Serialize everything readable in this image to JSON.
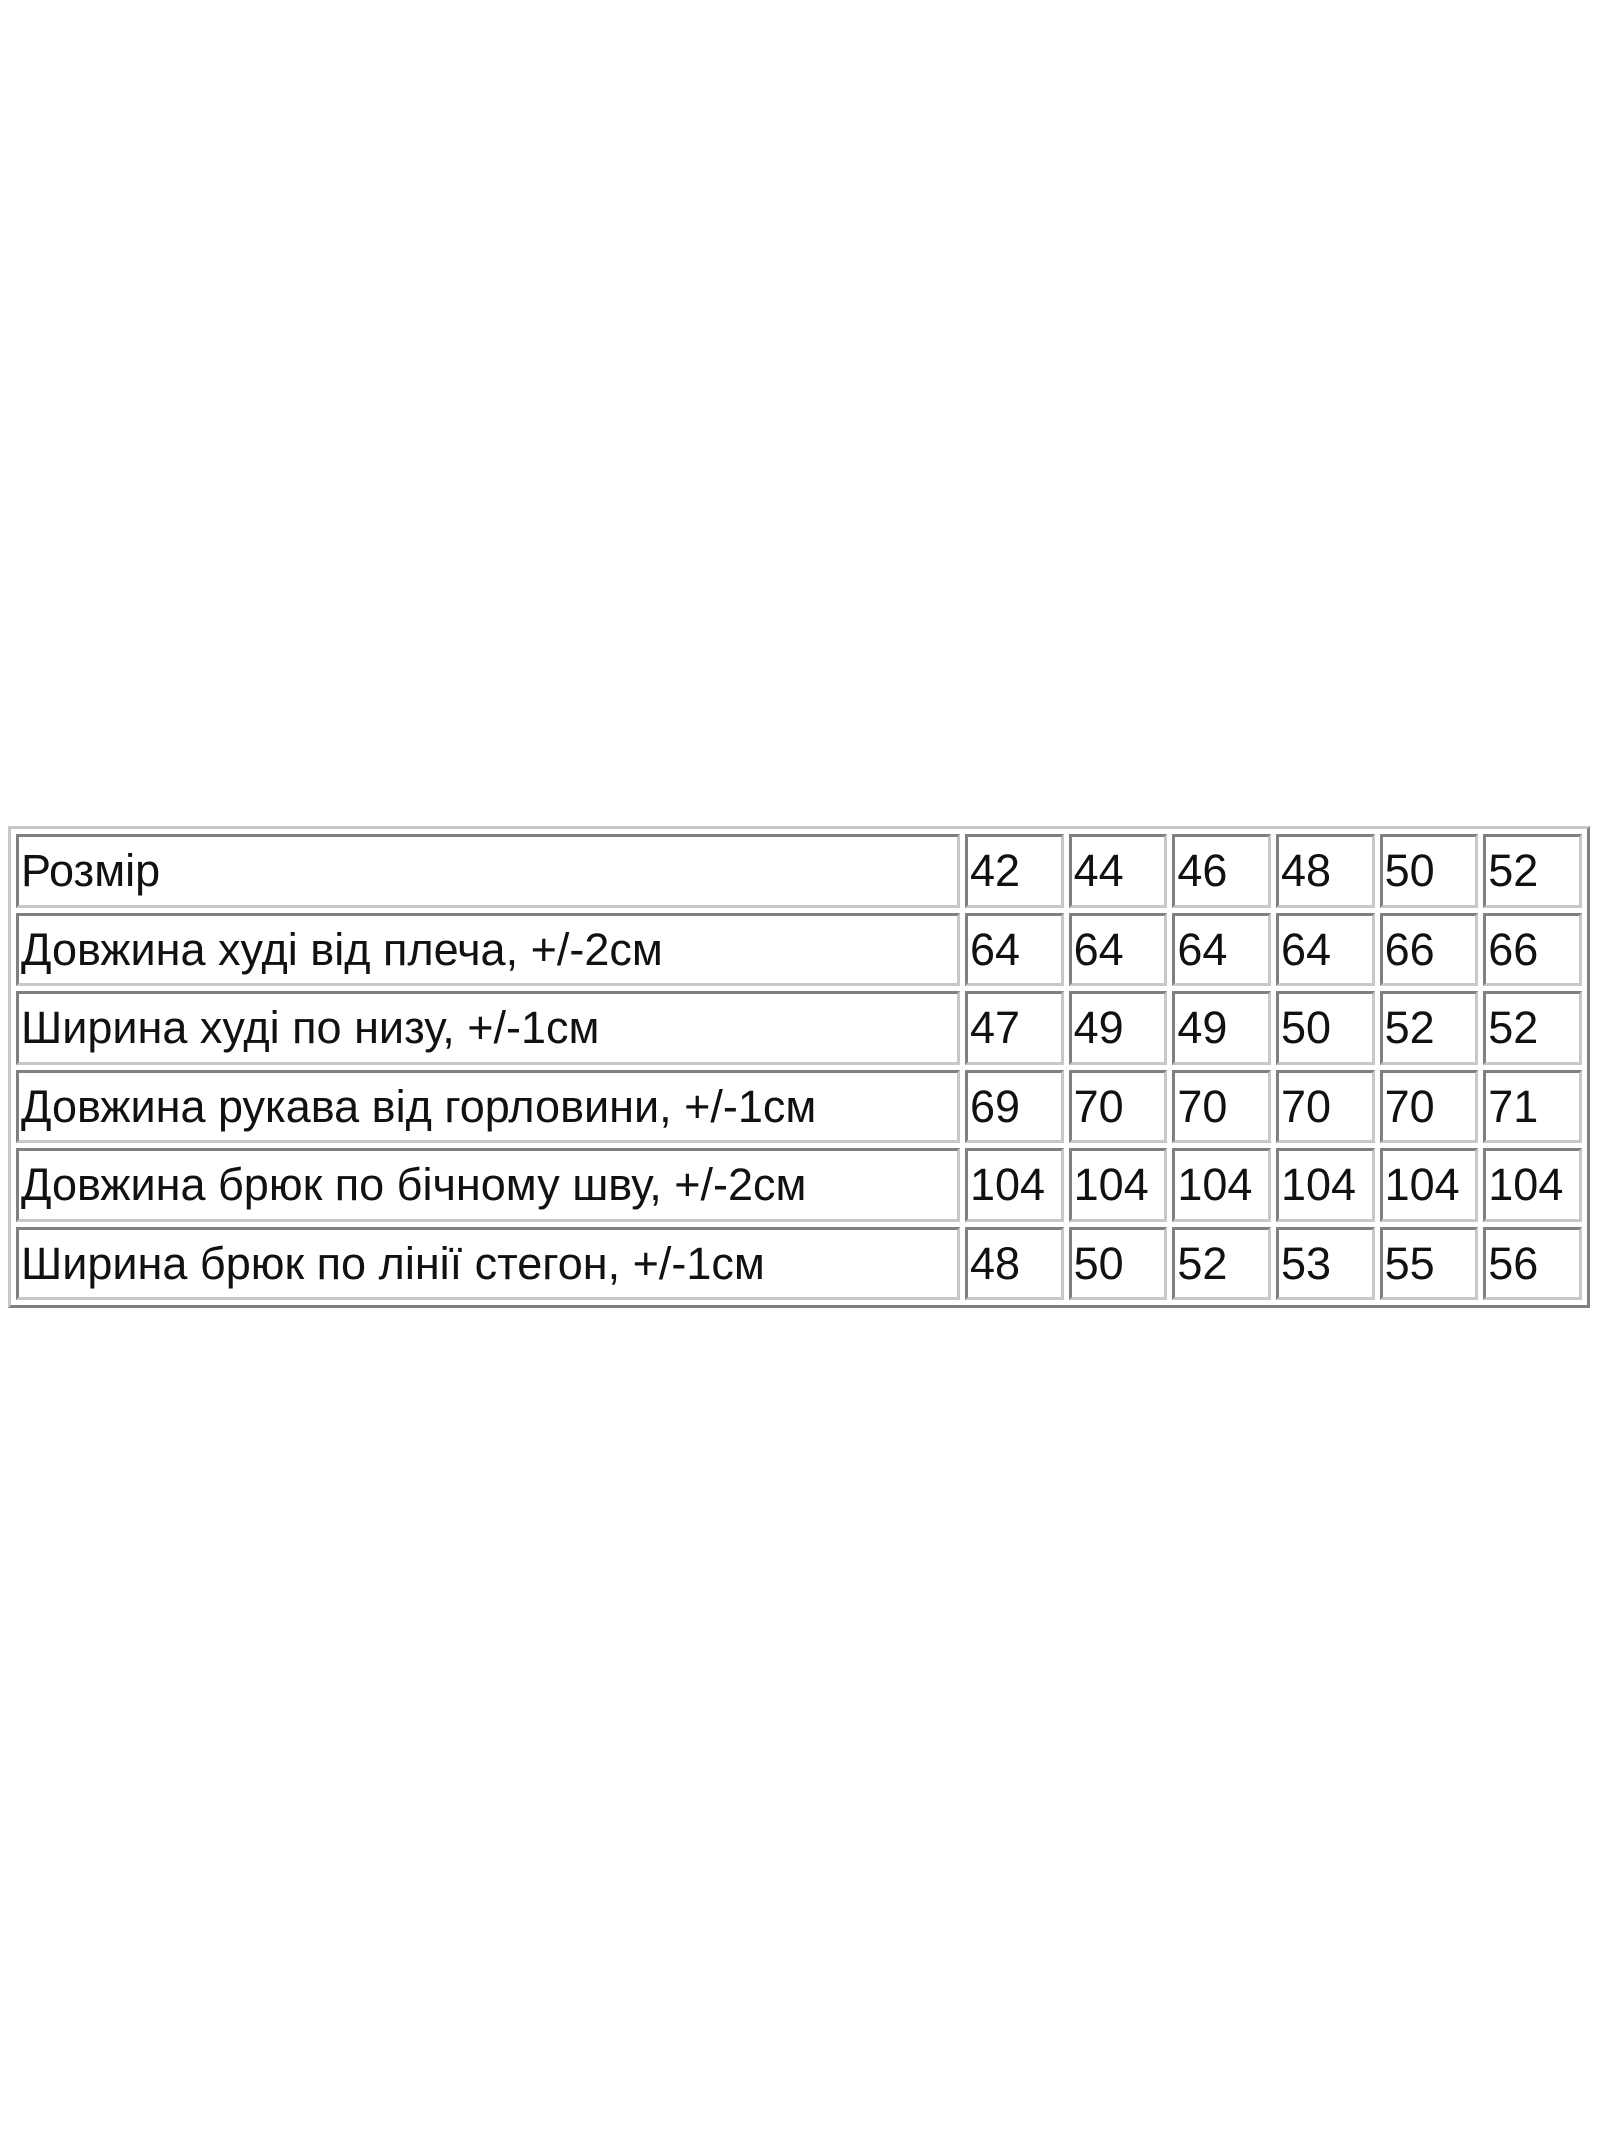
{
  "size_table": {
    "rows": [
      {
        "label": "Розмір",
        "values": [
          "42",
          "44",
          "46",
          "48",
          "50",
          "52"
        ]
      },
      {
        "label": "Довжина худі від плеча, +/-2см",
        "values": [
          "64",
          "64",
          "64",
          "64",
          "66",
          "66"
        ]
      },
      {
        "label": "Ширина худі по низу, +/-1см",
        "values": [
          "47",
          "49",
          "49",
          "50",
          "52",
          "52"
        ]
      },
      {
        "label": "Довжина рукава від горловини, +/-1см",
        "values": [
          "69",
          "70",
          "70",
          "70",
          "70",
          "71"
        ]
      },
      {
        "label": "Довжина брюк по бічному шву, +/-2см",
        "values": [
          "104",
          "104",
          "104",
          "104",
          "104",
          "104"
        ]
      },
      {
        "label": "Ширина брюк по лінії стегон, +/-1см",
        "values": [
          "48",
          "50",
          "52",
          "53",
          "55",
          "56"
        ]
      }
    ]
  }
}
